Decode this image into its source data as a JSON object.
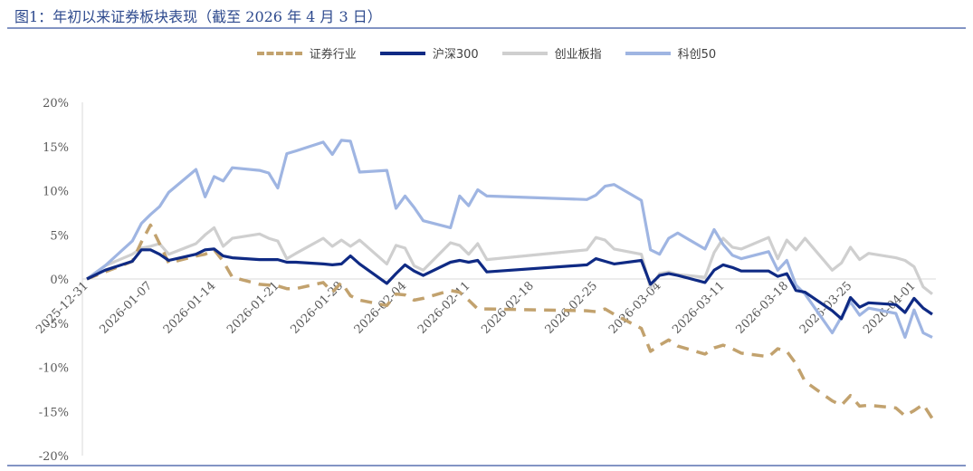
{
  "title": "图1：年初以来证券板块表现（截至 2026 年 4 月 3 日）",
  "colors": {
    "rule": "#8294C4",
    "axis": "#D9D9D9",
    "securities": "#C2A26E",
    "hs300": "#0F2A84",
    "chinext": "#CFCFCF",
    "star50": "#9FB5E2"
  },
  "chart_data": {
    "type": "line",
    "title": "",
    "xlabel": "",
    "ylabel": "",
    "ylim": [
      -20,
      20
    ],
    "yticks": [
      "20%",
      "15%",
      "10%",
      "5%",
      "0%",
      "-5%",
      "-10%",
      "-15%",
      "-20%"
    ],
    "xticks": [
      "2025-12-31",
      "2026-01-07",
      "2026-01-14",
      "2026-01-21",
      "2026-01-28",
      "2026-02-04",
      "2026-02-11",
      "2026-02-18",
      "2026-02-25",
      "2026-03-04",
      "2026-03-11",
      "2026-03-18",
      "2026-03-25",
      "2026-04-01"
    ],
    "grid": false,
    "legend_position": "top",
    "series": [
      {
        "name": "证券行业",
        "style": "dashed",
        "points": [
          [
            "2025-12-31",
            0.0
          ],
          [
            "2026-01-02",
            0.8
          ],
          [
            "2026-01-05",
            2.0
          ],
          [
            "2026-01-06",
            4.2
          ],
          [
            "2026-01-07",
            6.1
          ],
          [
            "2026-01-08",
            4.0
          ],
          [
            "2026-01-09",
            1.8
          ],
          [
            "2026-01-12",
            2.6
          ],
          [
            "2026-01-13",
            2.8
          ],
          [
            "2026-01-14",
            3.3
          ],
          [
            "2026-01-15",
            2.0
          ],
          [
            "2026-01-16",
            0.2
          ],
          [
            "2026-01-19",
            -0.6
          ],
          [
            "2026-01-20",
            -0.7
          ],
          [
            "2026-01-21",
            -0.8
          ],
          [
            "2026-01-22",
            -1.1
          ],
          [
            "2026-01-23",
            -1.1
          ],
          [
            "2026-01-26",
            -0.4
          ],
          [
            "2026-01-27",
            -1.5
          ],
          [
            "2026-01-28",
            -0.4
          ],
          [
            "2026-01-29",
            -1.9
          ],
          [
            "2026-01-30",
            -2.4
          ],
          [
            "2026-02-02",
            -3.0
          ],
          [
            "2026-02-03",
            -1.7
          ],
          [
            "2026-02-04",
            -1.8
          ],
          [
            "2026-02-05",
            -2.4
          ],
          [
            "2026-02-06",
            -2.2
          ],
          [
            "2026-02-09",
            -1.3
          ],
          [
            "2026-02-10",
            -1.5
          ],
          [
            "2026-02-11",
            -2.4
          ],
          [
            "2026-02-12",
            -3.4
          ],
          [
            "2026-02-13",
            -3.4
          ],
          [
            "2026-02-24",
            -3.6
          ],
          [
            "2026-02-25",
            -3.7
          ],
          [
            "2026-02-26",
            -3.4
          ],
          [
            "2026-02-27",
            -4.0
          ],
          [
            "2026-03-02",
            -5.6
          ],
          [
            "2026-03-03",
            -8.2
          ],
          [
            "2026-03-04",
            -7.5
          ],
          [
            "2026-03-05",
            -6.9
          ],
          [
            "2026-03-06",
            -7.6
          ],
          [
            "2026-03-09",
            -8.5
          ],
          [
            "2026-03-10",
            -7.8
          ],
          [
            "2026-03-11",
            -7.5
          ],
          [
            "2026-03-12",
            -7.9
          ],
          [
            "2026-03-13",
            -8.4
          ],
          [
            "2026-03-16",
            -8.8
          ],
          [
            "2026-03-17",
            -7.9
          ],
          [
            "2026-03-18",
            -8.2
          ],
          [
            "2026-03-19",
            -9.6
          ],
          [
            "2026-03-20",
            -11.6
          ],
          [
            "2026-03-23",
            -13.8
          ],
          [
            "2026-03-24",
            -14.3
          ],
          [
            "2026-03-25",
            -13.2
          ],
          [
            "2026-03-26",
            -14.4
          ],
          [
            "2026-03-27",
            -14.3
          ],
          [
            "2026-03-30",
            -14.6
          ],
          [
            "2026-03-31",
            -15.5
          ],
          [
            "2026-04-01",
            -14.9
          ],
          [
            "2026-04-02",
            -14.2
          ],
          [
            "2026-04-03",
            -15.8
          ]
        ]
      },
      {
        "name": "沪深300",
        "style": "solid",
        "points": [
          [
            "2025-12-31",
            0.0
          ],
          [
            "2026-01-02",
            1.0
          ],
          [
            "2026-01-05",
            2.0
          ],
          [
            "2026-01-06",
            3.3
          ],
          [
            "2026-01-07",
            3.3
          ],
          [
            "2026-01-08",
            2.8
          ],
          [
            "2026-01-09",
            2.1
          ],
          [
            "2026-01-12",
            2.8
          ],
          [
            "2026-01-13",
            3.3
          ],
          [
            "2026-01-14",
            3.4
          ],
          [
            "2026-01-15",
            2.6
          ],
          [
            "2026-01-16",
            2.4
          ],
          [
            "2026-01-19",
            2.2
          ],
          [
            "2026-01-20",
            2.2
          ],
          [
            "2026-01-21",
            2.2
          ],
          [
            "2026-01-22",
            1.9
          ],
          [
            "2026-01-23",
            1.9
          ],
          [
            "2026-01-26",
            1.7
          ],
          [
            "2026-01-27",
            1.6
          ],
          [
            "2026-01-28",
            1.7
          ],
          [
            "2026-01-29",
            2.6
          ],
          [
            "2026-01-30",
            1.7
          ],
          [
            "2026-02-02",
            -0.5
          ],
          [
            "2026-02-03",
            0.6
          ],
          [
            "2026-02-04",
            1.6
          ],
          [
            "2026-02-05",
            0.9
          ],
          [
            "2026-02-06",
            0.4
          ],
          [
            "2026-02-09",
            1.9
          ],
          [
            "2026-02-10",
            2.1
          ],
          [
            "2026-02-11",
            1.9
          ],
          [
            "2026-02-12",
            2.1
          ],
          [
            "2026-02-13",
            0.8
          ],
          [
            "2026-02-24",
            1.6
          ],
          [
            "2026-02-25",
            2.3
          ],
          [
            "2026-02-26",
            2.0
          ],
          [
            "2026-02-27",
            1.7
          ],
          [
            "2026-03-02",
            2.1
          ],
          [
            "2026-03-03",
            -0.6
          ],
          [
            "2026-03-04",
            0.4
          ],
          [
            "2026-03-05",
            0.6
          ],
          [
            "2026-03-06",
            0.4
          ],
          [
            "2026-03-09",
            -0.4
          ],
          [
            "2026-03-10",
            1.0
          ],
          [
            "2026-03-11",
            1.6
          ],
          [
            "2026-03-12",
            1.3
          ],
          [
            "2026-03-13",
            0.9
          ],
          [
            "2026-03-16",
            0.9
          ],
          [
            "2026-03-17",
            0.3
          ],
          [
            "2026-03-18",
            0.6
          ],
          [
            "2026-03-19",
            -1.3
          ],
          [
            "2026-03-20",
            -1.5
          ],
          [
            "2026-03-23",
            -3.6
          ],
          [
            "2026-03-24",
            -4.5
          ],
          [
            "2026-03-25",
            -2.1
          ],
          [
            "2026-03-26",
            -3.2
          ],
          [
            "2026-03-27",
            -2.7
          ],
          [
            "2026-03-30",
            -2.9
          ],
          [
            "2026-03-31",
            -3.8
          ],
          [
            "2026-04-01",
            -2.2
          ],
          [
            "2026-04-02",
            -3.3
          ],
          [
            "2026-04-03",
            -4.0
          ]
        ]
      },
      {
        "name": "创业板指",
        "style": "solid",
        "points": [
          [
            "2025-12-31",
            0.0
          ],
          [
            "2026-01-02",
            1.5
          ],
          [
            "2026-01-05",
            2.8
          ],
          [
            "2026-01-06",
            3.5
          ],
          [
            "2026-01-07",
            3.7
          ],
          [
            "2026-01-08",
            4.0
          ],
          [
            "2026-01-09",
            2.8
          ],
          [
            "2026-01-12",
            4.0
          ],
          [
            "2026-01-13",
            5.0
          ],
          [
            "2026-01-14",
            5.8
          ],
          [
            "2026-01-15",
            3.7
          ],
          [
            "2026-01-16",
            4.6
          ],
          [
            "2026-01-19",
            5.1
          ],
          [
            "2026-01-20",
            4.6
          ],
          [
            "2026-01-21",
            4.3
          ],
          [
            "2026-01-22",
            2.3
          ],
          [
            "2026-01-23",
            2.9
          ],
          [
            "2026-01-26",
            4.6
          ],
          [
            "2026-01-27",
            3.7
          ],
          [
            "2026-01-28",
            4.4
          ],
          [
            "2026-01-29",
            3.7
          ],
          [
            "2026-01-30",
            4.4
          ],
          [
            "2026-02-02",
            1.7
          ],
          [
            "2026-02-03",
            3.8
          ],
          [
            "2026-02-04",
            3.5
          ],
          [
            "2026-02-05",
            1.5
          ],
          [
            "2026-02-06",
            1.0
          ],
          [
            "2026-02-09",
            4.1
          ],
          [
            "2026-02-10",
            3.8
          ],
          [
            "2026-02-11",
            2.8
          ],
          [
            "2026-02-12",
            4.0
          ],
          [
            "2026-02-13",
            2.2
          ],
          [
            "2026-02-24",
            3.3
          ],
          [
            "2026-02-25",
            4.7
          ],
          [
            "2026-02-26",
            4.4
          ],
          [
            "2026-02-27",
            3.4
          ],
          [
            "2026-03-02",
            2.8
          ],
          [
            "2026-03-03",
            -1.0
          ],
          [
            "2026-03-04",
            0.6
          ],
          [
            "2026-03-05",
            0.8
          ],
          [
            "2026-03-06",
            0.5
          ],
          [
            "2026-03-09",
            0.2
          ],
          [
            "2026-03-10",
            3.0
          ],
          [
            "2026-03-11",
            4.6
          ],
          [
            "2026-03-12",
            3.6
          ],
          [
            "2026-03-13",
            3.4
          ],
          [
            "2026-03-16",
            4.7
          ],
          [
            "2026-03-17",
            2.3
          ],
          [
            "2026-03-18",
            4.4
          ],
          [
            "2026-03-19",
            3.3
          ],
          [
            "2026-03-20",
            4.6
          ],
          [
            "2026-03-23",
            1.0
          ],
          [
            "2026-03-24",
            1.8
          ],
          [
            "2026-03-25",
            3.6
          ],
          [
            "2026-03-26",
            2.2
          ],
          [
            "2026-03-27",
            2.9
          ],
          [
            "2026-03-30",
            2.4
          ],
          [
            "2026-03-31",
            2.1
          ],
          [
            "2026-04-01",
            1.4
          ],
          [
            "2026-04-02",
            -0.9
          ],
          [
            "2026-04-03",
            -1.7
          ]
        ]
      },
      {
        "name": "科创50",
        "style": "solid",
        "points": [
          [
            "2025-12-31",
            0.0
          ],
          [
            "2026-01-02",
            1.5
          ],
          [
            "2026-01-05",
            4.3
          ],
          [
            "2026-01-06",
            6.3
          ],
          [
            "2026-01-07",
            7.3
          ],
          [
            "2026-01-08",
            8.2
          ],
          [
            "2026-01-09",
            9.8
          ],
          [
            "2026-01-12",
            12.4
          ],
          [
            "2026-01-13",
            9.3
          ],
          [
            "2026-01-14",
            11.6
          ],
          [
            "2026-01-15",
            11.1
          ],
          [
            "2026-01-16",
            12.6
          ],
          [
            "2026-01-19",
            12.3
          ],
          [
            "2026-01-20",
            12.0
          ],
          [
            "2026-01-21",
            10.3
          ],
          [
            "2026-01-22",
            14.2
          ],
          [
            "2026-01-23",
            14.5
          ],
          [
            "2026-01-26",
            15.5
          ],
          [
            "2026-01-27",
            14.1
          ],
          [
            "2026-01-28",
            15.7
          ],
          [
            "2026-01-29",
            15.6
          ],
          [
            "2026-01-30",
            12.1
          ],
          [
            "2026-02-02",
            12.3
          ],
          [
            "2026-02-03",
            8.0
          ],
          [
            "2026-02-04",
            9.4
          ],
          [
            "2026-02-05",
            8.1
          ],
          [
            "2026-02-06",
            6.6
          ],
          [
            "2026-02-09",
            5.8
          ],
          [
            "2026-02-10",
            9.4
          ],
          [
            "2026-02-11",
            8.3
          ],
          [
            "2026-02-12",
            10.1
          ],
          [
            "2026-02-13",
            9.4
          ],
          [
            "2026-02-24",
            9.0
          ],
          [
            "2026-02-25",
            9.5
          ],
          [
            "2026-02-26",
            10.5
          ],
          [
            "2026-02-27",
            10.7
          ],
          [
            "2026-03-02",
            8.9
          ],
          [
            "2026-03-03",
            3.3
          ],
          [
            "2026-03-04",
            2.8
          ],
          [
            "2026-03-05",
            4.6
          ],
          [
            "2026-03-06",
            5.2
          ],
          [
            "2026-03-09",
            3.4
          ],
          [
            "2026-03-10",
            5.6
          ],
          [
            "2026-03-11",
            3.9
          ],
          [
            "2026-03-12",
            2.7
          ],
          [
            "2026-03-13",
            2.3
          ],
          [
            "2026-03-16",
            3.1
          ],
          [
            "2026-03-17",
            1.0
          ],
          [
            "2026-03-18",
            2.1
          ],
          [
            "2026-03-19",
            -0.7
          ],
          [
            "2026-03-20",
            -1.7
          ],
          [
            "2026-03-23",
            -6.1
          ],
          [
            "2026-03-24",
            -4.3
          ],
          [
            "2026-03-25",
            -2.6
          ],
          [
            "2026-03-26",
            -4.1
          ],
          [
            "2026-03-27",
            -3.3
          ],
          [
            "2026-03-30",
            -3.9
          ],
          [
            "2026-03-31",
            -6.6
          ],
          [
            "2026-04-01",
            -3.5
          ],
          [
            "2026-04-02",
            -6.1
          ],
          [
            "2026-04-03",
            -6.6
          ]
        ]
      }
    ]
  }
}
